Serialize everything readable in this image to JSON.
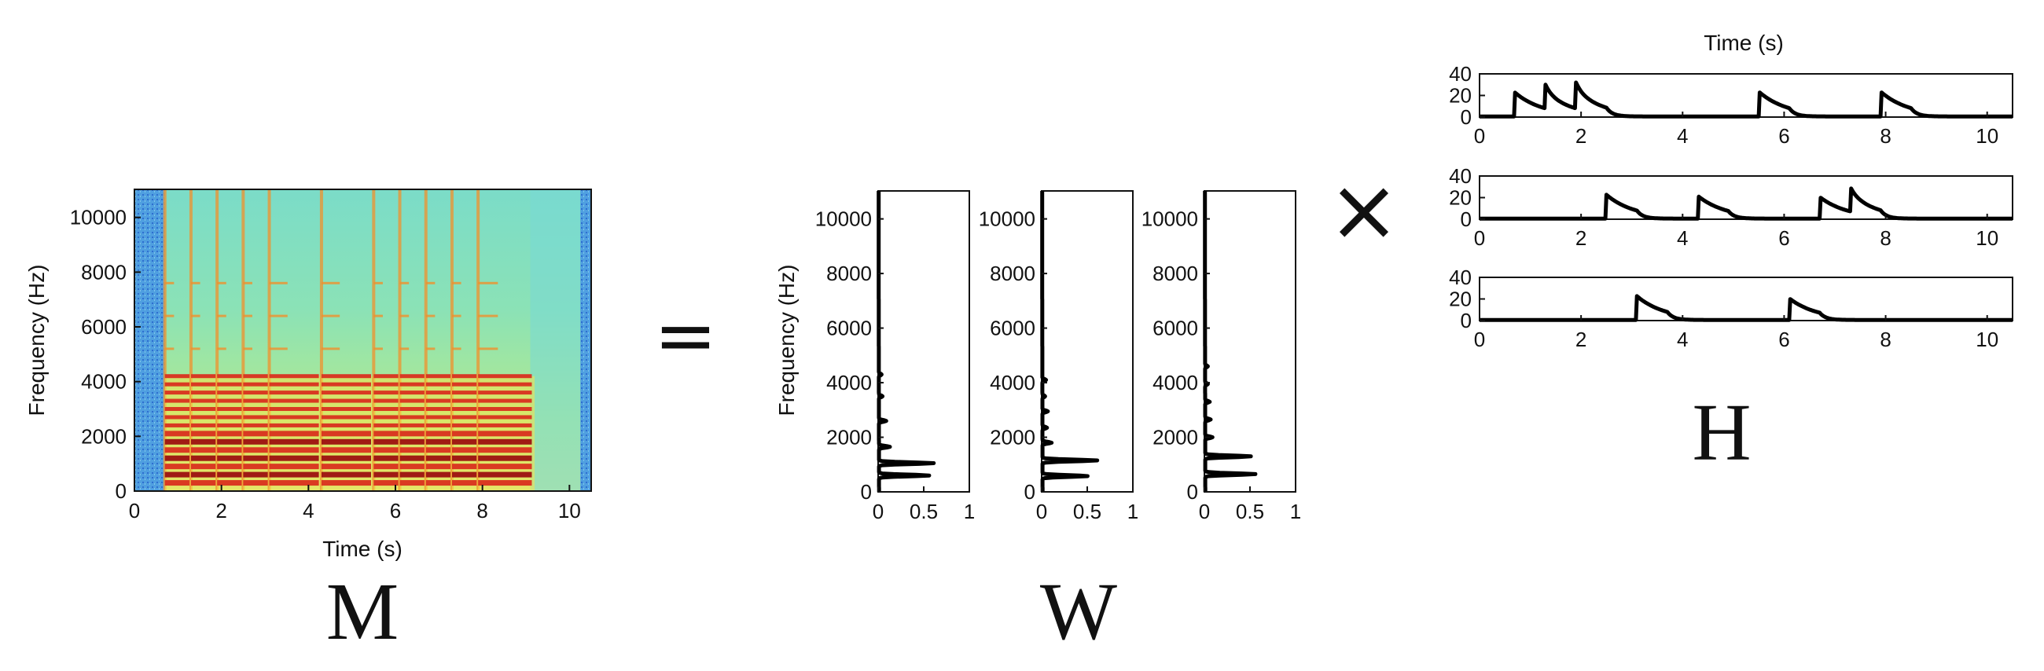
{
  "spectrogram": {
    "xlabel": "Time (s)",
    "ylabel": "Frequency (Hz)",
    "x_ticks": [
      "0",
      "2",
      "4",
      "6",
      "8",
      "10"
    ],
    "y_ticks": [
      "0",
      "2000",
      "4000",
      "6000",
      "8000",
      "10000"
    ],
    "letter": "M",
    "colormap": [
      "#3a7fd9",
      "#5fd8d0",
      "#bff07a",
      "#f6e34a",
      "#f0902c",
      "#d9301f",
      "#9c1010"
    ]
  },
  "equals_symbol": "=",
  "times_symbol": "×",
  "templates": {
    "ylabel": "Frequency (Hz)",
    "y_ticks": [
      "0",
      "2000",
      "4000",
      "6000",
      "8000",
      "10000"
    ],
    "x_ticks": [
      "0",
      "0.5",
      "1"
    ],
    "letter": "W"
  },
  "activations": {
    "title": "Time (s)",
    "y_ticks": [
      "0",
      "20",
      "40"
    ],
    "x_ticks": [
      "0",
      "2",
      "4",
      "6",
      "8",
      "10"
    ],
    "letter": "H"
  },
  "chart_data": [
    {
      "type": "heatmap",
      "panel": "M",
      "xlabel": "Time (s)",
      "ylabel": "Frequency (Hz)",
      "xlim": [
        0,
        10.5
      ],
      "ylim": [
        0,
        11025
      ],
      "note_onsets_s": [
        0.7,
        1.3,
        1.9,
        2.5,
        3.1,
        4.3,
        5.5,
        6.1,
        6.7,
        7.3,
        7.9
      ],
      "harmonic_bands_hz": [
        300,
        600,
        900,
        1200,
        1500,
        1800,
        2100,
        2400,
        2700,
        3000,
        3300,
        3600,
        3900,
        4200,
        5200,
        6400,
        7600
      ]
    },
    {
      "type": "line",
      "panel": "W",
      "ylabel": "Frequency (Hz)",
      "xlim": [
        0,
        1
      ],
      "ylim": [
        0,
        11025
      ],
      "series": [
        {
          "peaks": [
            [
              600,
              0.55
            ],
            [
              1050,
              0.6
            ],
            [
              1650,
              0.12
            ],
            [
              2600,
              0.08
            ],
            [
              3500,
              0.04
            ],
            [
              4300,
              0.03
            ]
          ]
        },
        {
          "peaks": [
            [
              580,
              0.5
            ],
            [
              1150,
              0.6
            ],
            [
              1800,
              0.1
            ],
            [
              2350,
              0.05
            ],
            [
              2950,
              0.06
            ],
            [
              3500,
              0.03
            ],
            [
              4100,
              0.04
            ]
          ]
        },
        {
          "peaks": [
            [
              650,
              0.55
            ],
            [
              1300,
              0.5
            ],
            [
              2000,
              0.08
            ],
            [
              2650,
              0.06
            ],
            [
              3300,
              0.05
            ],
            [
              3950,
              0.03
            ],
            [
              4600,
              0.03
            ]
          ]
        }
      ]
    },
    {
      "type": "line",
      "panel": "H",
      "title": "Time (s)",
      "xlim": [
        0,
        10.5
      ],
      "ylim": [
        0,
        40
      ],
      "series": [
        {
          "onsets": [
            [
              0.7,
              22
            ],
            [
              1.3,
              22
            ],
            [
              1.9,
              24
            ],
            [
              5.5,
              23
            ],
            [
              7.9,
              23
            ]
          ]
        },
        {
          "onsets": [
            [
              2.5,
              22
            ],
            [
              4.3,
              21
            ],
            [
              6.7,
              20
            ],
            [
              7.3,
              23
            ]
          ]
        },
        {
          "onsets": [
            [
              3.1,
              22
            ],
            [
              6.1,
              20
            ]
          ]
        }
      ]
    }
  ]
}
